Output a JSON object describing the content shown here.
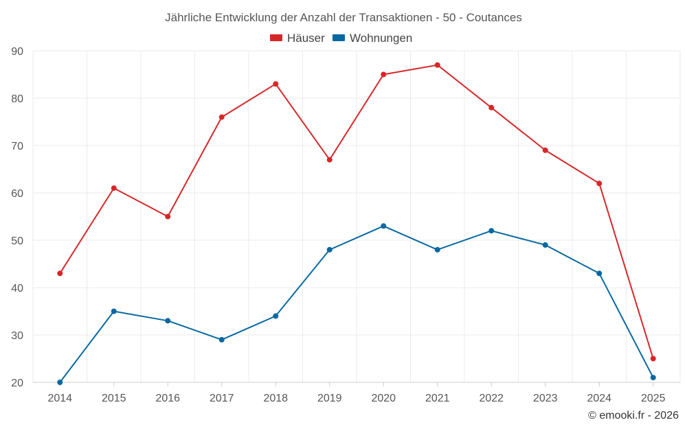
{
  "chart_data": {
    "type": "line",
    "title": "Jährliche Entwicklung der Anzahl der Transaktionen - 50 - Coutances",
    "categories": [
      "2014",
      "2015",
      "2016",
      "2017",
      "2018",
      "2019",
      "2020",
      "2021",
      "2022",
      "2023",
      "2024",
      "2025"
    ],
    "series": [
      {
        "name": "Häuser",
        "color": "#d62728",
        "values": [
          43,
          61,
          55,
          76,
          83,
          67,
          85,
          87,
          78,
          69,
          62,
          25
        ]
      },
      {
        "name": "Wohnungen",
        "color": "#0868a0",
        "values": [
          20,
          35,
          33,
          29,
          34,
          48,
          53,
          48,
          52,
          49,
          43,
          21
        ]
      }
    ],
    "ylim": [
      20,
      90
    ],
    "yticks": [
      20,
      30,
      40,
      50,
      60,
      70,
      80,
      90
    ],
    "grid": true,
    "legend": "top-center",
    "xlabel": "",
    "ylabel": ""
  },
  "credit": "© emooki.fr - 2026"
}
